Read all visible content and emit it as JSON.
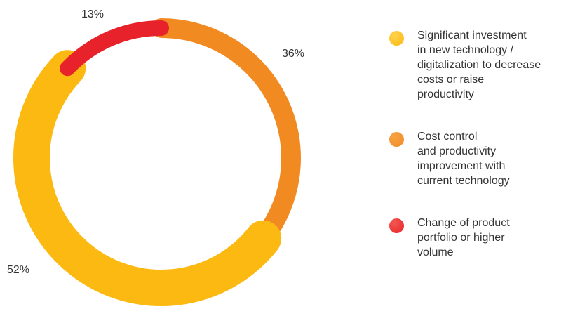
{
  "chart_data": {
    "type": "pie",
    "variant": "donut",
    "slices": [
      {
        "label": "Cost control and productivity improvement with current technology",
        "value": 36,
        "value_label": "36%",
        "color": "#F18A21"
      },
      {
        "label": "Significant investment in new technology / digitalization to decrease costs or raise productivity",
        "value": 52,
        "value_label": "52%",
        "color": "#FBB912"
      },
      {
        "label": "Change of product portfolio or higher volume",
        "value": 13,
        "value_label": "13%",
        "color": "#E8222B"
      }
    ],
    "legend_position": "right"
  },
  "legend": [
    {
      "text": "Significant investment\nin new technology /\ndigitalization to decrease\ncosts or raise\nproductivity",
      "color": "#FBB912"
    },
    {
      "text": "Cost control\nand productivity\nimprovement with\ncurrent technology",
      "color": "#F18A21"
    },
    {
      "text": "Change of product\nportfolio or higher\nvolume",
      "color": "#E8222B"
    }
  ]
}
